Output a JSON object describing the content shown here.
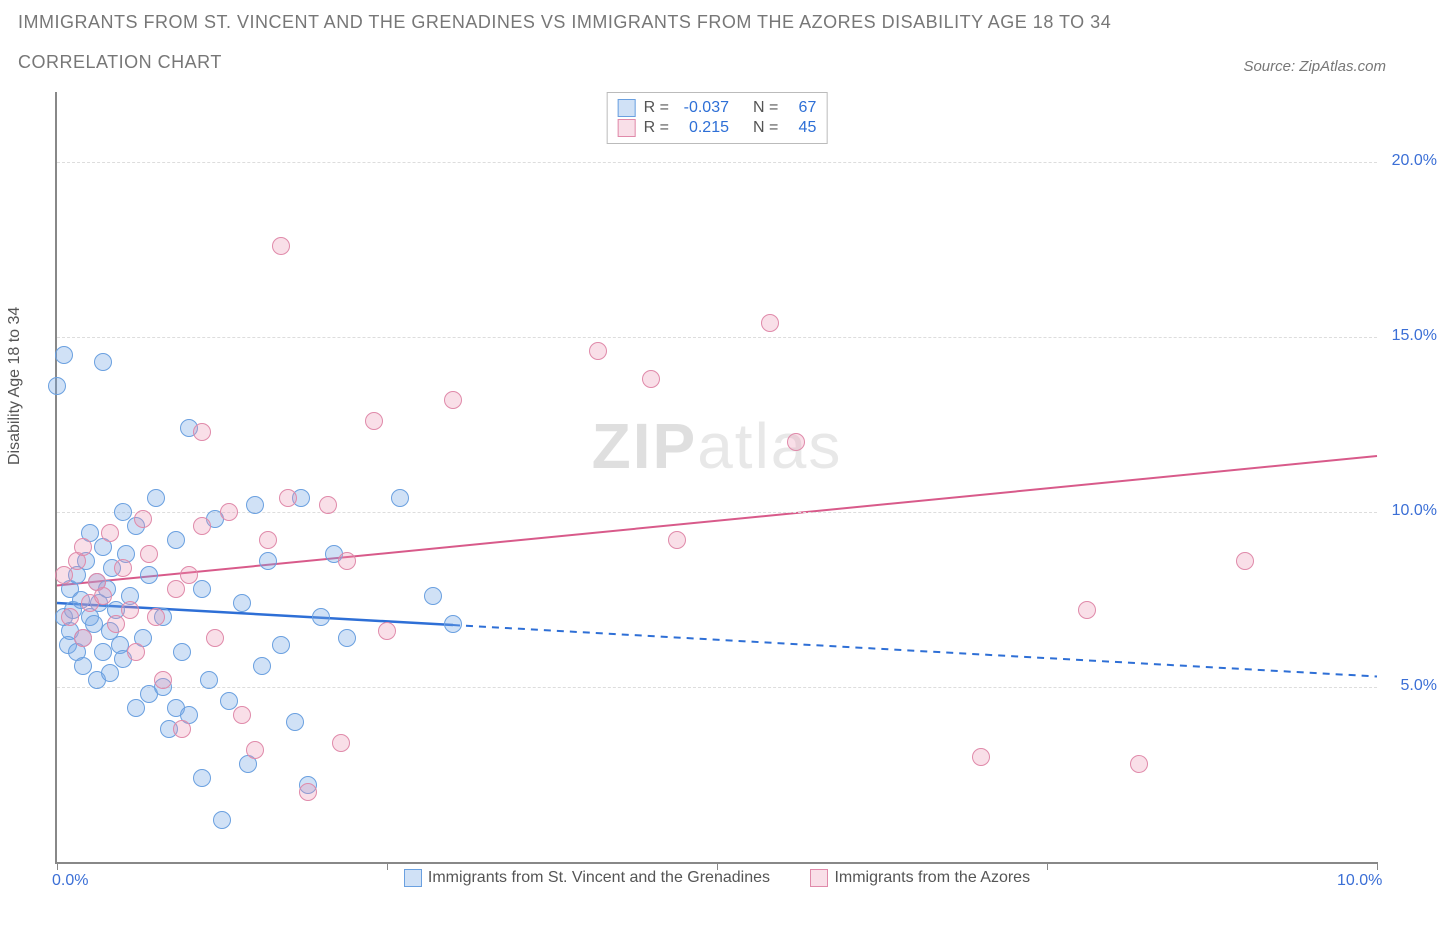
{
  "title_line1": "IMMIGRANTS FROM ST. VINCENT AND THE GRENADINES VS IMMIGRANTS FROM THE AZORES DISABILITY AGE 18 TO 34",
  "title_line2": "CORRELATION CHART",
  "source_label": "Source: ZipAtlas.com",
  "y_axis_title": "Disability Age 18 to 34",
  "watermark_bold": "ZIP",
  "watermark_light": "atlas",
  "chart": {
    "type": "scatter",
    "xlim": [
      0,
      10
    ],
    "ylim": [
      0,
      22
    ],
    "x_ticks": [
      0,
      2.5,
      5,
      7.5,
      10
    ],
    "x_tick_labels": [
      "0.0%",
      "",
      "",
      "",
      "10.0%"
    ],
    "y_gridlines": [
      5,
      10,
      15,
      20
    ],
    "y_tick_labels": [
      "5.0%",
      "10.0%",
      "15.0%",
      "20.0%"
    ],
    "background_color": "#ffffff",
    "grid_color": "#dddddd",
    "axis_color": "#888888",
    "tick_label_color": "#3b6fd6",
    "marker_radius": 9,
    "marker_border_width": 1.5,
    "series": [
      {
        "id": "svg_series",
        "label": "Immigrants from St. Vincent and the Grenadines",
        "fill_color": "rgba(120,170,230,0.35)",
        "stroke_color": "#6aa0e0",
        "r_value": "-0.037",
        "n_value": "67",
        "trend": {
          "x1": 0,
          "y1": 7.4,
          "x2": 10,
          "y2": 5.3,
          "solid_until_x": 3.0,
          "color": "#2e6fd6",
          "width": 2.5
        },
        "points": [
          [
            0.05,
            7.0
          ],
          [
            0.08,
            6.2
          ],
          [
            0.1,
            7.8
          ],
          [
            0.1,
            6.6
          ],
          [
            0.12,
            7.2
          ],
          [
            0.15,
            6.0
          ],
          [
            0.15,
            8.2
          ],
          [
            0.18,
            7.5
          ],
          [
            0.2,
            6.4
          ],
          [
            0.2,
            5.6
          ],
          [
            0.22,
            8.6
          ],
          [
            0.25,
            7.0
          ],
          [
            0.25,
            9.4
          ],
          [
            0.28,
            6.8
          ],
          [
            0.3,
            5.2
          ],
          [
            0.3,
            8.0
          ],
          [
            0.32,
            7.4
          ],
          [
            0.35,
            6.0
          ],
          [
            0.35,
            9.0
          ],
          [
            0.35,
            14.3
          ],
          [
            0.38,
            7.8
          ],
          [
            0.4,
            5.4
          ],
          [
            0.4,
            6.6
          ],
          [
            0.42,
            8.4
          ],
          [
            0.45,
            7.2
          ],
          [
            0.05,
            14.5
          ],
          [
            0.48,
            6.2
          ],
          [
            0.5,
            10.0
          ],
          [
            0.5,
            5.8
          ],
          [
            0.52,
            8.8
          ],
          [
            0.55,
            7.6
          ],
          [
            0.6,
            4.4
          ],
          [
            0.6,
            9.6
          ],
          [
            0.0,
            13.6
          ],
          [
            0.65,
            6.4
          ],
          [
            0.7,
            4.8
          ],
          [
            0.7,
            8.2
          ],
          [
            0.75,
            10.4
          ],
          [
            0.8,
            5.0
          ],
          [
            0.8,
            7.0
          ],
          [
            0.85,
            3.8
          ],
          [
            0.9,
            4.4
          ],
          [
            0.9,
            9.2
          ],
          [
            0.95,
            6.0
          ],
          [
            1.0,
            12.4
          ],
          [
            1.0,
            4.2
          ],
          [
            1.1,
            2.4
          ],
          [
            1.1,
            7.8
          ],
          [
            1.15,
            5.2
          ],
          [
            1.2,
            9.8
          ],
          [
            1.25,
            1.2
          ],
          [
            1.3,
            4.6
          ],
          [
            1.4,
            7.4
          ],
          [
            1.45,
            2.8
          ],
          [
            1.5,
            10.2
          ],
          [
            1.55,
            5.6
          ],
          [
            1.6,
            8.6
          ],
          [
            1.7,
            6.2
          ],
          [
            1.8,
            4.0
          ],
          [
            1.85,
            10.4
          ],
          [
            1.9,
            2.2
          ],
          [
            2.0,
            7.0
          ],
          [
            2.1,
            8.8
          ],
          [
            2.2,
            6.4
          ],
          [
            2.6,
            10.4
          ],
          [
            2.85,
            7.6
          ],
          [
            3.0,
            6.8
          ]
        ]
      },
      {
        "id": "azores_series",
        "label": "Immigrants from the Azores",
        "fill_color": "rgba(235,150,180,0.30)",
        "stroke_color": "#e08aaa",
        "r_value": "0.215",
        "n_value": "45",
        "trend": {
          "x1": 0,
          "y1": 7.9,
          "x2": 10,
          "y2": 11.6,
          "solid_until_x": 10,
          "color": "#d85a8a",
          "width": 2
        },
        "points": [
          [
            0.05,
            8.2
          ],
          [
            0.1,
            7.0
          ],
          [
            0.15,
            8.6
          ],
          [
            0.2,
            6.4
          ],
          [
            0.2,
            9.0
          ],
          [
            0.25,
            7.4
          ],
          [
            0.3,
            8.0
          ],
          [
            0.35,
            7.6
          ],
          [
            0.4,
            9.4
          ],
          [
            0.45,
            6.8
          ],
          [
            0.5,
            8.4
          ],
          [
            0.55,
            7.2
          ],
          [
            0.6,
            6.0
          ],
          [
            0.65,
            9.8
          ],
          [
            0.7,
            8.8
          ],
          [
            0.75,
            7.0
          ],
          [
            0.8,
            5.2
          ],
          [
            0.9,
            7.8
          ],
          [
            0.95,
            3.8
          ],
          [
            1.0,
            8.2
          ],
          [
            1.1,
            9.6
          ],
          [
            1.1,
            12.3
          ],
          [
            1.2,
            6.4
          ],
          [
            1.3,
            10.0
          ],
          [
            1.4,
            4.2
          ],
          [
            1.5,
            3.2
          ],
          [
            1.6,
            9.2
          ],
          [
            1.7,
            17.6
          ],
          [
            1.75,
            10.4
          ],
          [
            1.9,
            2.0
          ],
          [
            2.05,
            10.2
          ],
          [
            2.15,
            3.4
          ],
          [
            2.4,
            12.6
          ],
          [
            2.2,
            8.6
          ],
          [
            2.5,
            6.6
          ],
          [
            3.0,
            13.2
          ],
          [
            4.1,
            14.6
          ],
          [
            4.5,
            13.8
          ],
          [
            4.7,
            9.2
          ],
          [
            5.4,
            15.4
          ],
          [
            5.6,
            12.0
          ],
          [
            7.0,
            3.0
          ],
          [
            7.8,
            7.2
          ],
          [
            8.2,
            2.8
          ],
          [
            9.0,
            8.6
          ]
        ]
      }
    ],
    "legend_top": {
      "r_label": "R =",
      "n_label": "N =",
      "value_color": "#2e6fd6"
    }
  }
}
